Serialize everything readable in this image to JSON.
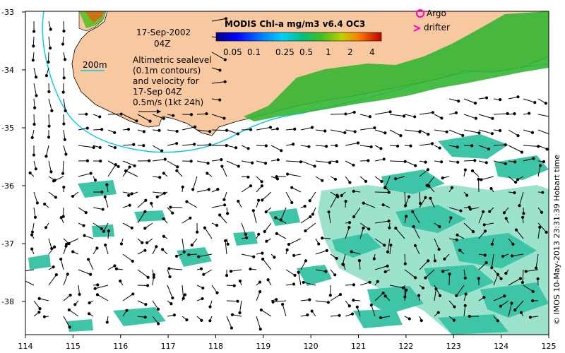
{
  "figure": {
    "date_line1": "17-Sep-2002",
    "date_line2": "04Z",
    "description_lines": [
      "Altimetric sealevel",
      "(0.1m contours)",
      "and velocity for",
      "17-Sep 04Z",
      "0.5m/s (1kt 24h)"
    ],
    "depth_label": "200m",
    "credit": "© IMOS 10-May-2013 23:31:39 Hobart time"
  },
  "colorbar": {
    "title": "MODIS Chl-a mg/m3 v6.4 OC3",
    "tick_labels": [
      "0.05",
      "0.1",
      "0.25",
      "0.5",
      "1",
      "2",
      "4"
    ]
  },
  "legend": {
    "argo_label": "Argo",
    "drifter_label": "drifter",
    "argo_color": "#ff00cc",
    "drifter_color": "#ff00cc"
  },
  "axes": {
    "x_ticks": [
      "114",
      "115",
      "116",
      "117",
      "118",
      "119",
      "120",
      "121",
      "122",
      "123",
      "124",
      "125"
    ],
    "y_ticks": [
      "-33",
      "-34",
      "-35",
      "-36",
      "-37",
      "-38"
    ],
    "lon_range": [
      114,
      125
    ],
    "lat_range": [
      -33,
      -38.5
    ]
  },
  "colors": {
    "land": "#f8c9a0",
    "ocean": "#ffffff",
    "coast_chl": "#33b533",
    "offshore_chl": "#2ebfa0",
    "depth_contour": "#00c8e6",
    "arrow": "#000000"
  }
}
